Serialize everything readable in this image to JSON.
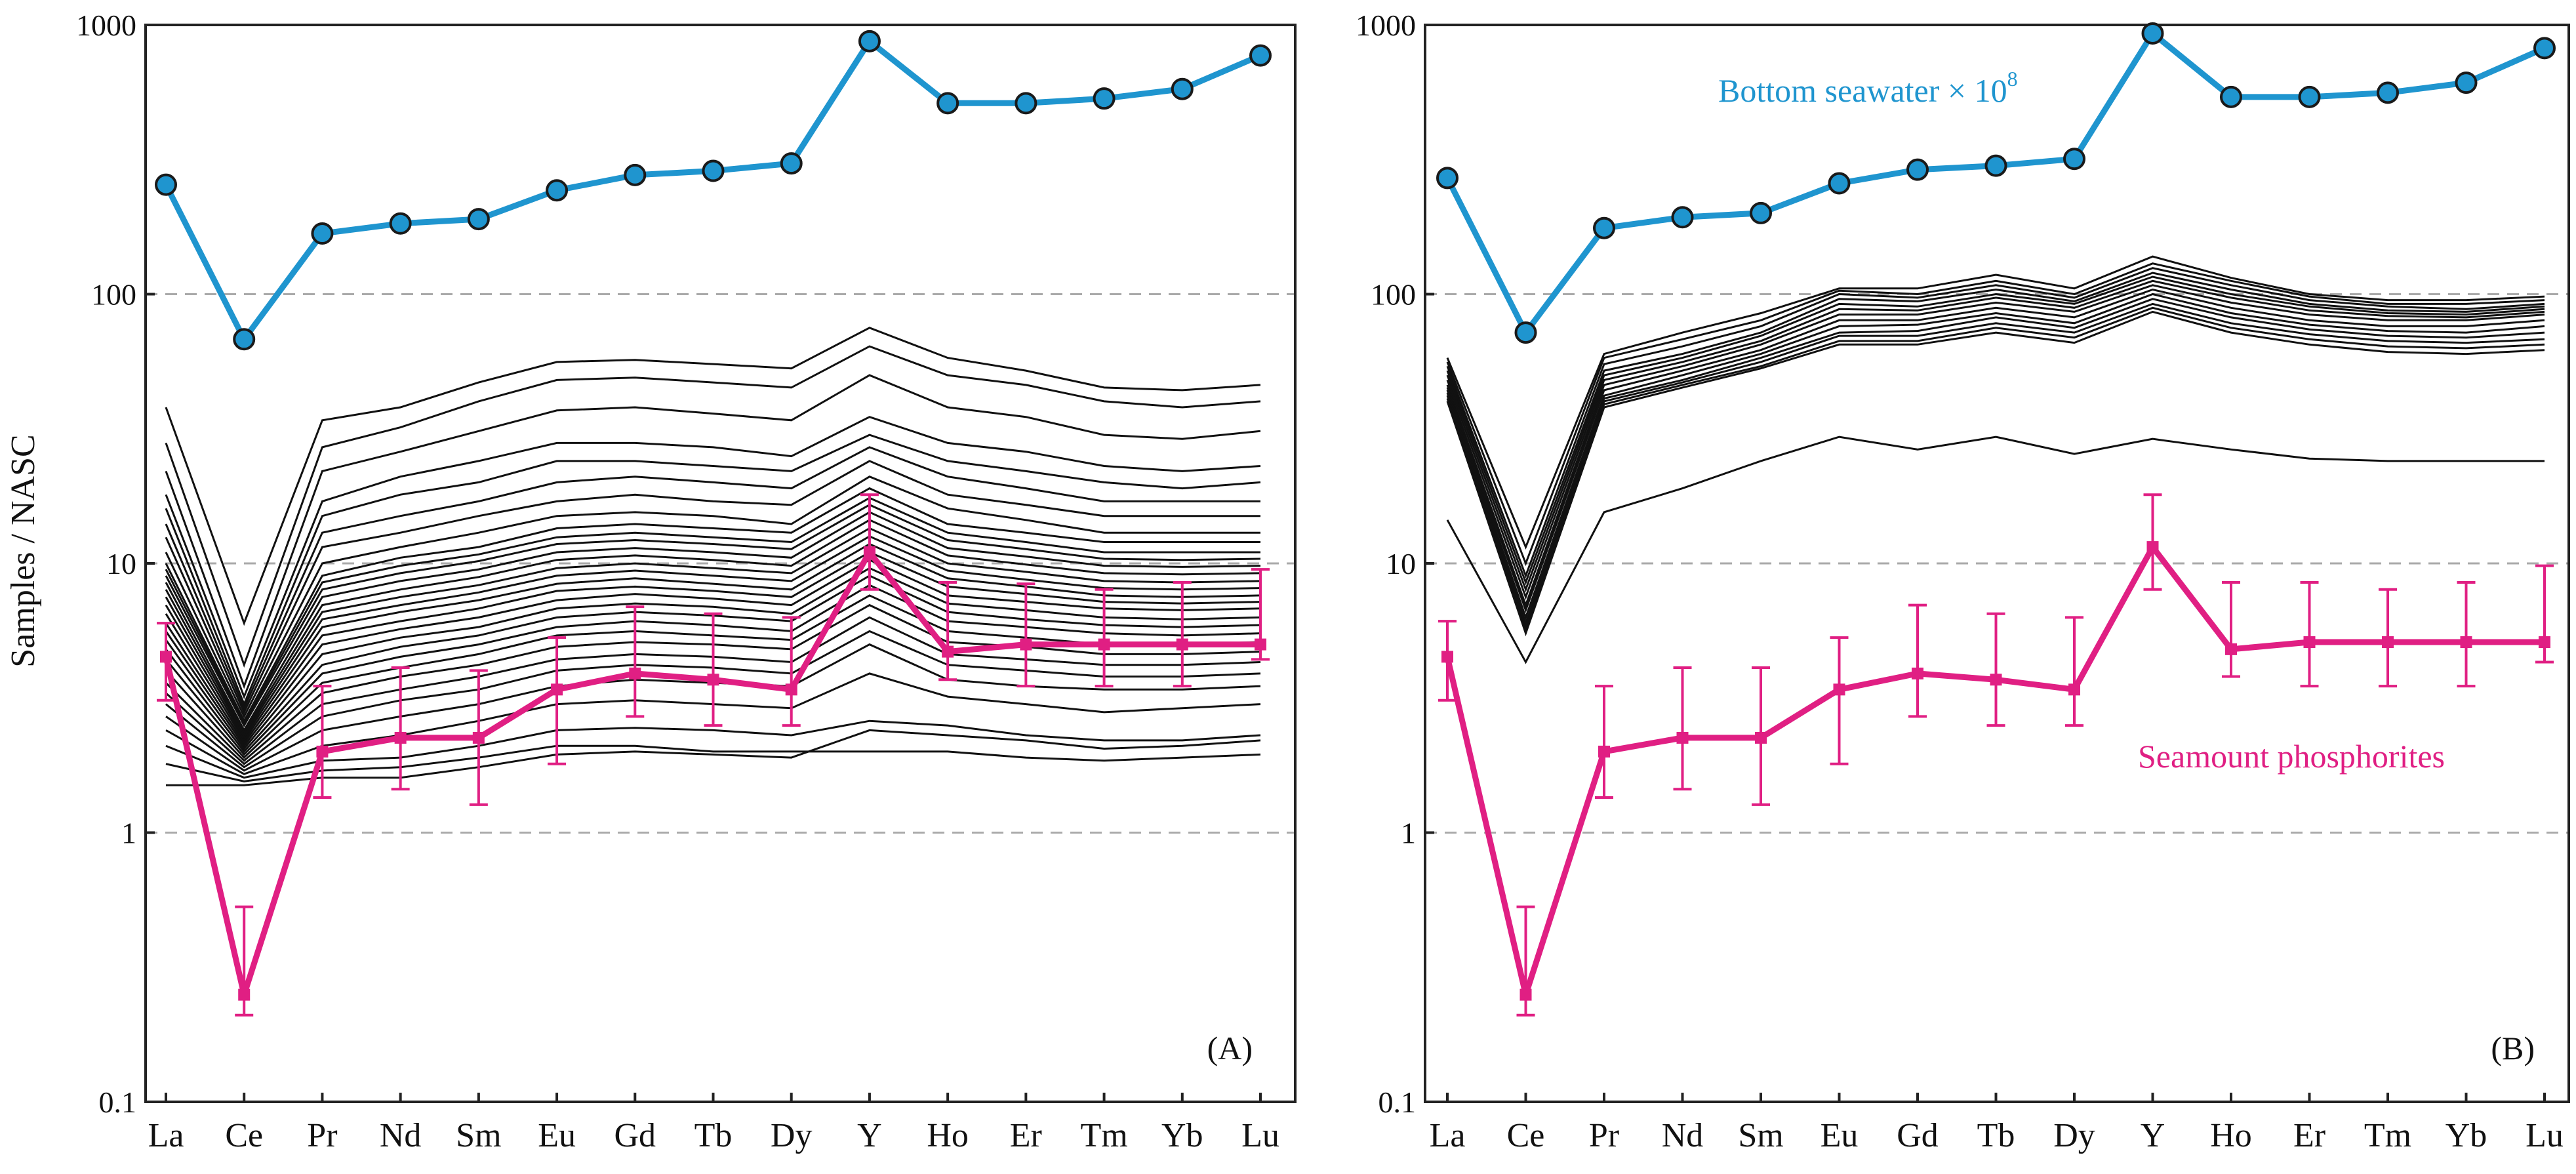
{
  "chart_data": [
    {
      "type": "line",
      "panel_label": "(A)",
      "ylabel": "Samples / NASC",
      "yscale": "log",
      "ylim": [
        0.1,
        1000
      ],
      "yticks": [
        "0.1",
        "1",
        "10",
        "100",
        "1000"
      ],
      "grid": "dashed horizontal at 1, 10, 100",
      "categories": [
        "La",
        "Ce",
        "Pr",
        "Nd",
        "Sm",
        "Eu",
        "Gd",
        "Tb",
        "Dy",
        "Y",
        "Ho",
        "Er",
        "Tm",
        "Yb",
        "Lu"
      ],
      "series": [
        {
          "name": "Bottom seawater × 10",
          "superscript": "8",
          "color": "#1f95cf",
          "markers": "circle",
          "values": [
            255,
            68,
            168,
            183,
            190,
            243,
            277,
            287,
            306,
            870,
            512,
            512,
            533,
            578,
            770
          ]
        },
        {
          "name": "Seamount phosphorites",
          "color": "#e01f83",
          "markers": "square",
          "values": [
            4.5,
            0.25,
            2.0,
            2.25,
            2.25,
            3.4,
            3.9,
            3.7,
            3.4,
            11.0,
            4.7,
            5.0,
            5.0,
            5.0,
            5.0
          ],
          "error_low": [
            3.1,
            0.21,
            1.35,
            1.45,
            1.27,
            1.8,
            2.7,
            2.5,
            2.5,
            8.0,
            3.7,
            3.5,
            3.5,
            3.5,
            4.4
          ],
          "error_high": [
            6.0,
            0.53,
            3.5,
            4.1,
            4.0,
            5.3,
            6.9,
            6.5,
            6.3,
            18.0,
            8.5,
            8.4,
            8.0,
            8.5,
            9.5
          ]
        }
      ],
      "sample_profiles": {
        "color": "#111111",
        "note": "individual samples",
        "values": [
          [
            38,
            6.0,
            34,
            38,
            47,
            56,
            57,
            55,
            53,
            75,
            58,
            52,
            45,
            44,
            46
          ],
          [
            28,
            4.2,
            27,
            32,
            40,
            48,
            49,
            47,
            45,
            64,
            50,
            46,
            40,
            38,
            40
          ],
          [
            22,
            3.5,
            22,
            26,
            31,
            37,
            38,
            36,
            34,
            50,
            38,
            35,
            30,
            29,
            31
          ],
          [
            18,
            3.2,
            17,
            21,
            24,
            28,
            28,
            27,
            25,
            35,
            28,
            26,
            23,
            22,
            23
          ],
          [
            16,
            3.0,
            15,
            18,
            20,
            24,
            24,
            23,
            22,
            30,
            24,
            22,
            20,
            19,
            20
          ],
          [
            14,
            2.9,
            13,
            15,
            17,
            20,
            21,
            20,
            19,
            27,
            21,
            19,
            17,
            17,
            17
          ],
          [
            12.5,
            2.8,
            11.5,
            13,
            15,
            17,
            18,
            17,
            16.5,
            24,
            18,
            16.5,
            15,
            15,
            15
          ],
          [
            11,
            2.7,
            10,
            11.5,
            13,
            15,
            15.5,
            15,
            14,
            21,
            16,
            14.5,
            13,
            13,
            13
          ],
          [
            10,
            2.6,
            9,
            10.5,
            11.5,
            13.5,
            14,
            13.5,
            13,
            19,
            14,
            13,
            12,
            12,
            12
          ],
          [
            9.5,
            2.55,
            8.5,
            9.8,
            10.8,
            12.5,
            13,
            12.5,
            12,
            17.5,
            13,
            12,
            11,
            11,
            11
          ],
          [
            9,
            2.5,
            8,
            9.2,
            10.2,
            11.8,
            12.2,
            11.8,
            11.3,
            16.5,
            12.2,
            11.3,
            10.4,
            10.3,
            10.4
          ],
          [
            8.5,
            2.4,
            7.5,
            8.6,
            9.5,
            11,
            11.4,
            11,
            10.5,
            15.5,
            11.4,
            10.6,
            9.8,
            9.7,
            9.8
          ],
          [
            8.0,
            2.35,
            7.0,
            8.0,
            8.9,
            10.3,
            10.7,
            10.3,
            9.8,
            14.5,
            10.7,
            9.9,
            9.2,
            9.1,
            9.2
          ],
          [
            7.5,
            2.3,
            6.6,
            7.5,
            8.3,
            9.6,
            10.0,
            9.6,
            9.2,
            13.5,
            10.0,
            9.3,
            8.6,
            8.5,
            8.6
          ],
          [
            7.0,
            2.25,
            6.2,
            7.0,
            7.8,
            9.0,
            9.4,
            9.0,
            8.6,
            12.6,
            9.4,
            8.7,
            8.1,
            8.0,
            8.1
          ],
          [
            6.5,
            2.2,
            5.8,
            6.6,
            7.3,
            8.4,
            8.8,
            8.4,
            8.0,
            11.8,
            8.8,
            8.2,
            7.6,
            7.5,
            7.6
          ],
          [
            6.0,
            2.15,
            5.4,
            6.1,
            6.8,
            7.9,
            8.2,
            7.9,
            7.5,
            11.0,
            8.2,
            7.7,
            7.2,
            7.1,
            7.2
          ],
          [
            5.6,
            2.1,
            5.0,
            5.7,
            6.3,
            7.3,
            7.7,
            7.4,
            7.0,
            10.3,
            7.6,
            7.2,
            6.8,
            6.7,
            6.8
          ],
          [
            5.2,
            2.05,
            4.6,
            5.3,
            5.8,
            6.8,
            7.1,
            6.9,
            6.5,
            9.6,
            7.1,
            6.7,
            6.3,
            6.2,
            6.3
          ],
          [
            4.8,
            2.0,
            4.2,
            4.9,
            5.4,
            6.3,
            6.6,
            6.4,
            6.1,
            9.0,
            6.6,
            6.2,
            5.9,
            5.8,
            5.9
          ],
          [
            4.4,
            1.95,
            3.9,
            4.5,
            5.0,
            5.8,
            6.1,
            5.9,
            5.6,
            8.3,
            6.1,
            5.8,
            5.5,
            5.4,
            5.5
          ],
          [
            4.0,
            1.9,
            3.6,
            4.1,
            4.6,
            5.4,
            5.6,
            5.4,
            5.2,
            7.6,
            5.6,
            5.3,
            5.0,
            5.0,
            5.1
          ],
          [
            3.6,
            1.85,
            3.3,
            3.8,
            4.2,
            4.9,
            5.1,
            5.0,
            4.8,
            7.0,
            5.1,
            4.9,
            4.6,
            4.6,
            4.7
          ],
          [
            3.3,
            1.8,
            3.0,
            3.4,
            3.8,
            4.4,
            4.6,
            4.5,
            4.3,
            6.3,
            4.6,
            4.4,
            4.2,
            4.2,
            4.3
          ],
          [
            3.0,
            1.75,
            2.7,
            3.1,
            3.4,
            4.0,
            4.2,
            4.1,
            3.9,
            5.6,
            4.2,
            4.0,
            3.8,
            3.8,
            3.9
          ],
          [
            2.7,
            1.7,
            2.4,
            2.7,
            3.0,
            3.5,
            3.7,
            3.6,
            3.5,
            5.0,
            3.7,
            3.5,
            3.4,
            3.4,
            3.5
          ],
          [
            2.4,
            1.65,
            2.1,
            2.3,
            2.6,
            3.0,
            3.1,
            3.0,
            2.9,
            3.9,
            3.2,
            3.0,
            2.8,
            2.9,
            3.0
          ],
          [
            2.1,
            1.6,
            1.85,
            1.9,
            2.1,
            2.4,
            2.45,
            2.4,
            2.3,
            2.6,
            2.5,
            2.3,
            2.2,
            2.2,
            2.3
          ],
          [
            1.8,
            1.55,
            1.7,
            1.75,
            1.9,
            2.1,
            2.1,
            2.0,
            2.0,
            2.0,
            2.0,
            1.9,
            1.85,
            1.9,
            1.95
          ],
          [
            1.5,
            1.5,
            1.6,
            1.6,
            1.75,
            1.95,
            2.0,
            1.95,
            1.9,
            2.4,
            2.3,
            2.2,
            2.05,
            2.1,
            2.2
          ]
        ]
      }
    },
    {
      "type": "line",
      "panel_label": "(B)",
      "yscale": "log",
      "ylim": [
        0.1,
        1000
      ],
      "yticks": [
        "0.1",
        "1",
        "10",
        "100",
        "1000"
      ],
      "grid": "dashed horizontal at 1, 10, 100",
      "categories": [
        "La",
        "Ce",
        "Pr",
        "Nd",
        "Sm",
        "Eu",
        "Gd",
        "Tb",
        "Dy",
        "Y",
        "Ho",
        "Er",
        "Tm",
        "Yb",
        "Lu"
      ],
      "series": [
        {
          "name": "Bottom seawater × 10",
          "superscript": "8",
          "color": "#1f95cf",
          "markers": "circle",
          "values": [
            270,
            72,
            176,
            193,
            200,
            258,
            290,
            300,
            318,
            930,
            540,
            540,
            560,
            610,
            820
          ]
        },
        {
          "name": "Seamount phosphorites",
          "color": "#e01f83",
          "markers": "square",
          "values": [
            4.5,
            0.25,
            2.0,
            2.25,
            2.25,
            3.4,
            3.9,
            3.7,
            3.4,
            11.5,
            4.8,
            5.1,
            5.1,
            5.1,
            5.1
          ],
          "error_low": [
            3.1,
            0.21,
            1.35,
            1.45,
            1.27,
            1.8,
            2.7,
            2.5,
            2.5,
            8.0,
            3.8,
            3.5,
            3.5,
            3.5,
            4.3
          ],
          "error_high": [
            6.1,
            0.53,
            3.5,
            4.1,
            4.1,
            5.3,
            7.0,
            6.5,
            6.3,
            18.0,
            8.5,
            8.5,
            8.0,
            8.5,
            9.8
          ]
        }
      ],
      "sample_profiles": {
        "color": "#111111",
        "note": "individual samples",
        "values": [
          [
            58,
            11.5,
            60,
            72,
            85,
            105,
            105,
            118,
            105,
            138,
            115,
            100,
            95,
            95,
            98
          ],
          [
            56,
            10.0,
            58,
            68,
            80,
            103,
            100,
            112,
            100,
            130,
            112,
            98,
            92,
            92,
            95
          ],
          [
            54,
            9.0,
            55,
            64,
            76,
            100,
            97,
            108,
            97,
            125,
            108,
            95,
            90,
            88,
            92
          ],
          [
            52,
            8.5,
            52,
            60,
            72,
            96,
            94,
            104,
            94,
            120,
            104,
            92,
            87,
            86,
            90
          ],
          [
            50,
            8.0,
            50,
            58,
            70,
            92,
            90,
            100,
            92,
            116,
            100,
            90,
            85,
            84,
            88
          ],
          [
            48,
            7.5,
            48,
            56,
            67,
            88,
            87,
            97,
            89,
            112,
            97,
            87,
            83,
            82,
            86
          ],
          [
            46,
            7.0,
            46,
            54,
            65,
            84,
            84,
            93,
            86,
            108,
            93,
            84,
            80,
            80,
            84
          ],
          [
            45,
            6.7,
            44,
            52,
            62,
            80,
            80,
            89,
            82,
            104,
            89,
            80,
            76,
            76,
            80
          ],
          [
            44,
            6.3,
            42,
            50,
            60,
            76,
            77,
            85,
            78,
            100,
            85,
            77,
            73,
            72,
            76
          ],
          [
            43,
            6.0,
            41,
            48,
            58,
            72,
            73,
            82,
            75,
            96,
            82,
            74,
            70,
            69,
            72
          ],
          [
            42,
            5.8,
            40,
            47,
            56,
            70,
            70,
            78,
            72,
            92,
            78,
            71,
            67,
            66,
            68
          ],
          [
            41,
            5.6,
            39,
            46,
            54,
            67,
            67,
            75,
            69,
            89,
            75,
            68,
            64,
            63,
            65
          ],
          [
            40,
            5.5,
            38,
            45,
            53,
            65,
            65,
            72,
            66,
            86,
            72,
            65,
            61,
            60,
            62
          ],
          [
            14.5,
            4.3,
            15.5,
            19,
            24,
            29.5,
            26.5,
            29.5,
            25.5,
            29,
            26.5,
            24.5,
            24,
            24,
            24
          ]
        ]
      }
    }
  ]
}
